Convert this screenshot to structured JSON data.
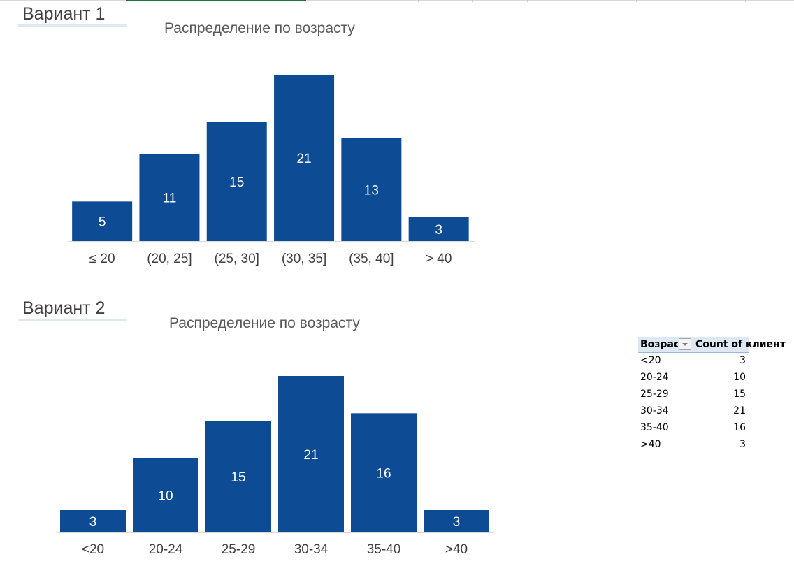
{
  "variants": [
    {
      "label": "Вариант 1",
      "title": "Распределение по возрасту"
    },
    {
      "label": "Вариант 2",
      "title": "Распределение по возрасту"
    }
  ],
  "colors": {
    "bar": "#0d4c94",
    "bar_label": "#ffffff",
    "tick_label": "#404040",
    "axis": "#d9d9d9"
  },
  "chart_data": [
    {
      "type": "bar",
      "title": "Распределение по возрасту",
      "categories": [
        "≤ 20",
        "(20, 25]",
        "(25, 30]",
        "(30, 35]",
        "(35, 40]",
        "> 40"
      ],
      "values": [
        5,
        11,
        15,
        21,
        13,
        3
      ],
      "ylim": [
        0,
        21
      ],
      "grid": false,
      "data_labels": true
    },
    {
      "type": "bar",
      "title": "Распределение по возрасту",
      "categories": [
        "<20",
        "20-24",
        "25-29",
        "30-34",
        "35-40",
        ">40"
      ],
      "values": [
        3,
        10,
        15,
        21,
        16,
        3
      ],
      "ylim": [
        0,
        21
      ],
      "grid": false,
      "data_labels": true
    }
  ],
  "pivot": {
    "header_row": "Возрас",
    "header_count": "Count of клиент",
    "rows": [
      {
        "label": "<20",
        "count": "3"
      },
      {
        "label": "20-24",
        "count": "10"
      },
      {
        "label": "25-29",
        "count": "15"
      },
      {
        "label": "30-34",
        "count": "21"
      },
      {
        "label": "35-40",
        "count": "16"
      },
      {
        "label": ">40",
        "count": "3"
      }
    ]
  }
}
